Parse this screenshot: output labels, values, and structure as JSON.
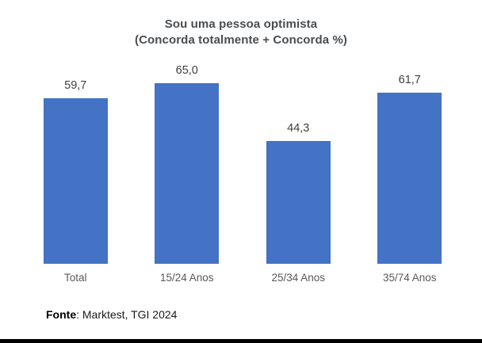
{
  "title": {
    "line1": "Sou uma pessoa optimista",
    "line2": "(Concorda totalmente + Concorda %)"
  },
  "source": {
    "label_bold": "Fonte",
    "label_rest": ": Marktest, TGI 2024"
  },
  "colors": {
    "bar": "#4472C4",
    "title_text": "#4a4d50",
    "value_label_text": "#404040",
    "category_label_text": "#595959",
    "bottom_divider": "#000000",
    "background": "#ffffff"
  },
  "chart_data": {
    "type": "bar",
    "title": "Sou uma pessoa optimista",
    "subtitle": "(Concorda totalmente + Concorda %)",
    "categories": [
      "Total",
      "15/24 Anos",
      "25/34 Anos",
      "35/74 Anos"
    ],
    "values": [
      59.7,
      65.0,
      44.3,
      61.7
    ],
    "value_labels": [
      "59,7",
      "65,0",
      "44,3",
      "61,7"
    ],
    "bar_color": "#4472C4",
    "data_labels": true,
    "legend": false,
    "grid": false,
    "axes_visible": false,
    "ylim": [
      0,
      80
    ],
    "source": "Fonte: Marktest, TGI 2024"
  }
}
